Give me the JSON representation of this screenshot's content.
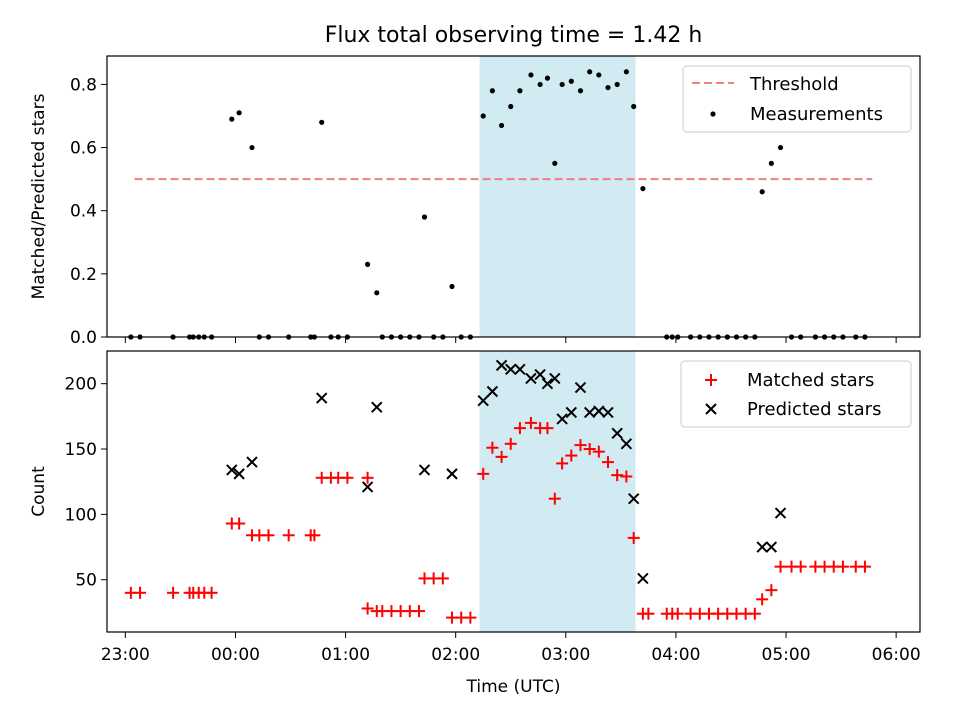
{
  "title": "Flux total observing time = 1.42 h",
  "xlabel": "Time (UTC)",
  "colors": {
    "threshold": "#f08080",
    "measurements": "#000000",
    "matched": "#ff0000",
    "predicted": "#000000",
    "shade": "#add8e6"
  },
  "chart_data": [
    {
      "type": "scatter",
      "ylabel": "Matched/Predicted stars",
      "ylim": [
        0,
        0.89
      ],
      "yticks": [
        "0.0",
        "0.2",
        "0.4",
        "0.6",
        "0.8"
      ],
      "legend_position": "top-right",
      "legend": [
        "Threshold",
        "Measurements"
      ],
      "shaded_region": {
        "x_start": "02:13",
        "x_end": "03:38"
      },
      "threshold": {
        "y": 0.5,
        "x_start": "23:05",
        "x_end": "05:47"
      },
      "series": [
        {
          "name": "Measurements",
          "points": [
            [
              "23:03",
              0
            ],
            [
              "23:08",
              0
            ],
            [
              "23:26",
              0
            ],
            [
              "23:35",
              0
            ],
            [
              "23:37",
              0
            ],
            [
              "23:40",
              0
            ],
            [
              "23:43",
              0
            ],
            [
              "23:47",
              0
            ],
            [
              "23:58",
              0.69
            ],
            [
              "00:02",
              0.71
            ],
            [
              "00:09",
              0.6
            ],
            [
              "00:13",
              0
            ],
            [
              "00:18",
              0
            ],
            [
              "00:29",
              0
            ],
            [
              "00:41",
              0
            ],
            [
              "00:43",
              0
            ],
            [
              "00:47",
              0.68
            ],
            [
              "00:52",
              0
            ],
            [
              "00:56",
              0
            ],
            [
              "01:01",
              0
            ],
            [
              "01:12",
              0.23
            ],
            [
              "01:17",
              0.14
            ],
            [
              "01:20",
              0
            ],
            [
              "01:25",
              0
            ],
            [
              "01:30",
              0
            ],
            [
              "01:35",
              0
            ],
            [
              "01:40",
              0
            ],
            [
              "01:43",
              0.38
            ],
            [
              "01:48",
              0
            ],
            [
              "01:53",
              0
            ],
            [
              "01:58",
              0.16
            ],
            [
              "02:03",
              0
            ],
            [
              "02:08",
              0
            ],
            [
              "02:15",
              0.7
            ],
            [
              "02:20",
              0.78
            ],
            [
              "02:25",
              0.67
            ],
            [
              "02:30",
              0.73
            ],
            [
              "02:35",
              0.78
            ],
            [
              "02:41",
              0.83
            ],
            [
              "02:46",
              0.8
            ],
            [
              "02:50",
              0.82
            ],
            [
              "02:54",
              0.55
            ],
            [
              "02:58",
              0.8
            ],
            [
              "03:03",
              0.81
            ],
            [
              "03:08",
              0.78
            ],
            [
              "03:13",
              0.84
            ],
            [
              "03:18",
              0.83
            ],
            [
              "03:23",
              0.79
            ],
            [
              "03:28",
              0.8
            ],
            [
              "03:33",
              0.84
            ],
            [
              "03:37",
              0.73
            ],
            [
              "03:42",
              0.47
            ],
            [
              "03:55",
              0
            ],
            [
              "03:58",
              0
            ],
            [
              "04:01",
              0
            ],
            [
              "04:08",
              0
            ],
            [
              "04:13",
              0
            ],
            [
              "04:18",
              0
            ],
            [
              "04:23",
              0
            ],
            [
              "04:28",
              0
            ],
            [
              "04:33",
              0
            ],
            [
              "04:38",
              0
            ],
            [
              "04:43",
              0
            ],
            [
              "04:47",
              0.46
            ],
            [
              "04:52",
              0.55
            ],
            [
              "04:57",
              0.6
            ],
            [
              "05:03",
              0
            ],
            [
              "05:08",
              0
            ],
            [
              "05:16",
              0
            ],
            [
              "05:21",
              0
            ],
            [
              "05:26",
              0
            ],
            [
              "05:31",
              0
            ],
            [
              "05:38",
              0
            ],
            [
              "05:43",
              0
            ]
          ]
        }
      ]
    },
    {
      "type": "scatter",
      "ylabel": "Count",
      "ylim": [
        10,
        225
      ],
      "yticks": [
        "50",
        "100",
        "150",
        "200"
      ],
      "legend_position": "top-right",
      "legend": [
        "Matched stars",
        "Predicted stars"
      ],
      "xlim": [
        "22:50",
        "06:13"
      ],
      "xticks": [
        "23:00",
        "00:00",
        "01:00",
        "02:00",
        "03:00",
        "04:00",
        "05:00",
        "06:00"
      ],
      "shaded_region": {
        "x_start": "02:13",
        "x_end": "03:38"
      },
      "series": [
        {
          "name": "Matched stars",
          "points": [
            [
              "23:03",
              40
            ],
            [
              "23:08",
              40
            ],
            [
              "23:26",
              40
            ],
            [
              "23:35",
              40
            ],
            [
              "23:37",
              40
            ],
            [
              "23:40",
              40
            ],
            [
              "23:43",
              40
            ],
            [
              "23:47",
              40
            ],
            [
              "23:58",
              93
            ],
            [
              "00:02",
              93
            ],
            [
              "00:09",
              84
            ],
            [
              "00:13",
              84
            ],
            [
              "00:18",
              84
            ],
            [
              "00:29",
              84
            ],
            [
              "00:41",
              84
            ],
            [
              "00:43",
              84
            ],
            [
              "00:47",
              128
            ],
            [
              "00:52",
              128
            ],
            [
              "00:56",
              128
            ],
            [
              "01:01",
              128
            ],
            [
              "01:12",
              128
            ],
            [
              "01:12",
              28
            ],
            [
              "01:17",
              26
            ],
            [
              "01:20",
              26
            ],
            [
              "01:25",
              26
            ],
            [
              "01:30",
              26
            ],
            [
              "01:35",
              26
            ],
            [
              "01:40",
              26
            ],
            [
              "01:43",
              51
            ],
            [
              "01:48",
              51
            ],
            [
              "01:53",
              51
            ],
            [
              "01:58",
              21
            ],
            [
              "02:03",
              21
            ],
            [
              "02:08",
              21
            ],
            [
              "02:15",
              131
            ],
            [
              "02:20",
              151
            ],
            [
              "02:25",
              144
            ],
            [
              "02:30",
              154
            ],
            [
              "02:35",
              166
            ],
            [
              "02:41",
              170
            ],
            [
              "02:46",
              166
            ],
            [
              "02:50",
              166
            ],
            [
              "02:54",
              112
            ],
            [
              "02:58",
              139
            ],
            [
              "03:03",
              145
            ],
            [
              "03:08",
              153
            ],
            [
              "03:13",
              150
            ],
            [
              "03:18",
              148
            ],
            [
              "03:23",
              140
            ],
            [
              "03:28",
              130
            ],
            [
              "03:33",
              129
            ],
            [
              "03:37",
              82
            ],
            [
              "03:42",
              24
            ],
            [
              "03:45",
              24
            ],
            [
              "03:55",
              24
            ],
            [
              "03:58",
              24
            ],
            [
              "04:01",
              24
            ],
            [
              "04:08",
              24
            ],
            [
              "04:13",
              24
            ],
            [
              "04:18",
              24
            ],
            [
              "04:23",
              24
            ],
            [
              "04:28",
              24
            ],
            [
              "04:33",
              24
            ],
            [
              "04:38",
              24
            ],
            [
              "04:43",
              24
            ],
            [
              "04:47",
              35
            ],
            [
              "04:52",
              42
            ],
            [
              "04:57",
              60
            ],
            [
              "05:03",
              60
            ],
            [
              "05:08",
              60
            ],
            [
              "05:16",
              60
            ],
            [
              "05:21",
              60
            ],
            [
              "05:26",
              60
            ],
            [
              "05:31",
              60
            ],
            [
              "05:38",
              60
            ],
            [
              "05:43",
              60
            ]
          ]
        },
        {
          "name": "Predicted stars",
          "points": [
            [
              "23:58",
              134
            ],
            [
              "00:02",
              131
            ],
            [
              "00:09",
              140
            ],
            [
              "00:47",
              189
            ],
            [
              "01:12",
              121
            ],
            [
              "01:17",
              182
            ],
            [
              "01:43",
              134
            ],
            [
              "01:58",
              131
            ],
            [
              "02:15",
              187
            ],
            [
              "02:20",
              194
            ],
            [
              "02:25",
              214
            ],
            [
              "02:30",
              211
            ],
            [
              "02:35",
              211
            ],
            [
              "02:41",
              204
            ],
            [
              "02:46",
              207
            ],
            [
              "02:50",
              200
            ],
            [
              "02:54",
              204
            ],
            [
              "02:58",
              173
            ],
            [
              "03:03",
              178
            ],
            [
              "03:08",
              197
            ],
            [
              "03:13",
              178
            ],
            [
              "03:18",
              179
            ],
            [
              "03:23",
              178
            ],
            [
              "03:28",
              162
            ],
            [
              "03:33",
              154
            ],
            [
              "03:37",
              112
            ],
            [
              "03:42",
              51
            ],
            [
              "04:47",
              75
            ],
            [
              "04:52",
              75
            ],
            [
              "04:57",
              101
            ]
          ]
        }
      ]
    }
  ]
}
